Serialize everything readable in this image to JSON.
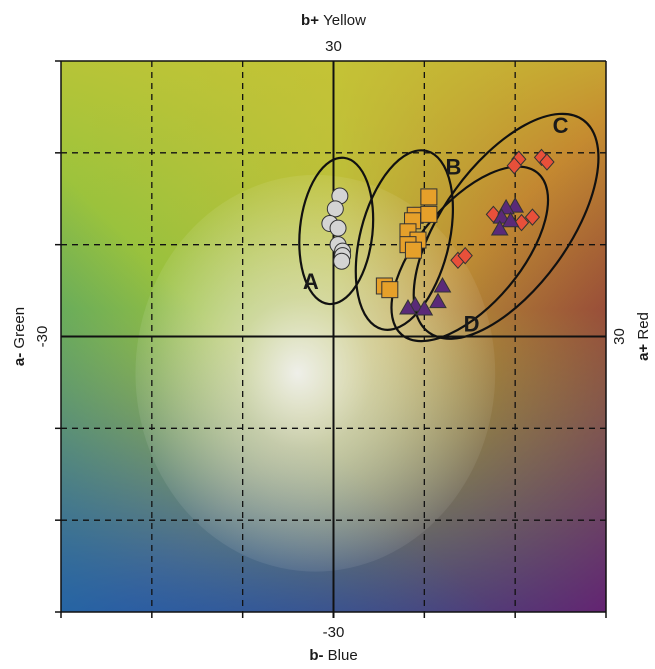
{
  "chart_data": {
    "type": "scatter",
    "title": "",
    "axes": {
      "x": {
        "min": -30,
        "max": 30,
        "positive_sign": "a+",
        "positive_label": "Red",
        "negative_sign": "a-",
        "negative_label": "Green",
        "min_label": "-30",
        "max_label": "30"
      },
      "y": {
        "min": -30,
        "max": 30,
        "positive_sign": "b+",
        "positive_label": "Yellow",
        "negative_sign": "b-",
        "negative_label": "Blue",
        "min_label": "-30",
        "max_label": "30"
      }
    },
    "grid": true,
    "gridlines": [
      -20,
      -10,
      10,
      20
    ],
    "background": "CIELAB a*-b* color plane",
    "colors": {
      "circle": "#d4d4d4",
      "square": "#e6a02a",
      "diamond": "#e8503a",
      "triangle": "#5a2a78",
      "outline": "#333333"
    },
    "groups": [
      {
        "label": "A",
        "marker": "circle",
        "ellipse": {
          "cx": 0.3,
          "cy": 11.5,
          "rx": 4.0,
          "ry": 8.0,
          "angle": 6
        },
        "label_pos": {
          "x": -2.5,
          "y": 5.8
        },
        "points": [
          {
            "x": 0.7,
            "y": 15.3
          },
          {
            "x": 0.2,
            "y": 13.9
          },
          {
            "x": -0.4,
            "y": 12.3
          },
          {
            "x": 0.5,
            "y": 11.8
          },
          {
            "x": 0.5,
            "y": 10.0
          },
          {
            "x": 1.0,
            "y": 9.3
          },
          {
            "x": 1.0,
            "y": 8.8
          },
          {
            "x": 0.9,
            "y": 8.2
          }
        ]
      },
      {
        "label": "B",
        "marker": "square",
        "ellipse": {
          "cx": 7.8,
          "cy": 10.5,
          "rx": 4.9,
          "ry": 10.0,
          "angle": 14
        },
        "label_pos": {
          "x": 13.2,
          "y": 18.3
        },
        "points": [
          {
            "x": 10.5,
            "y": 15.2
          },
          {
            "x": 9.0,
            "y": 13.2
          },
          {
            "x": 10.5,
            "y": 13.3
          },
          {
            "x": 8.7,
            "y": 12.6
          },
          {
            "x": 8.2,
            "y": 11.4
          },
          {
            "x": 9.3,
            "y": 10.5
          },
          {
            "x": 8.2,
            "y": 10.0
          },
          {
            "x": 8.8,
            "y": 9.4
          },
          {
            "x": 5.6,
            "y": 5.5
          },
          {
            "x": 6.2,
            "y": 5.1
          }
        ]
      },
      {
        "label": "C",
        "marker": "diamond",
        "ellipse": {
          "cx": 19.0,
          "cy": 12.0,
          "rx": 6.9,
          "ry": 14.3,
          "angle": 36
        },
        "label_pos": {
          "x": 25.0,
          "y": 22.8
        },
        "points": [
          {
            "x": 20.4,
            "y": 19.3
          },
          {
            "x": 19.9,
            "y": 18.6
          },
          {
            "x": 22.9,
            "y": 19.5
          },
          {
            "x": 23.5,
            "y": 19.0
          },
          {
            "x": 21.9,
            "y": 13.0
          },
          {
            "x": 17.6,
            "y": 13.3
          },
          {
            "x": 20.7,
            "y": 12.4
          },
          {
            "x": 13.7,
            "y": 8.3
          },
          {
            "x": 14.5,
            "y": 8.8
          }
        ]
      },
      {
        "label": "D",
        "marker": "triangle",
        "ellipse": {
          "cx": 15.0,
          "cy": 9.0,
          "rx": 5.6,
          "ry": 11.5,
          "angle": 40
        },
        "label_pos": {
          "x": 15.2,
          "y": 1.2
        },
        "points": [
          {
            "x": 20.0,
            "y": 14.2
          },
          {
            "x": 19.0,
            "y": 14.0
          },
          {
            "x": 18.5,
            "y": 13.0
          },
          {
            "x": 19.5,
            "y": 12.6
          },
          {
            "x": 18.3,
            "y": 11.7
          },
          {
            "x": 12.0,
            "y": 5.5
          },
          {
            "x": 11.5,
            "y": 3.8
          },
          {
            "x": 9.0,
            "y": 3.4
          },
          {
            "x": 8.2,
            "y": 3.1
          },
          {
            "x": 10.0,
            "y": 3.0
          }
        ]
      }
    ]
  }
}
